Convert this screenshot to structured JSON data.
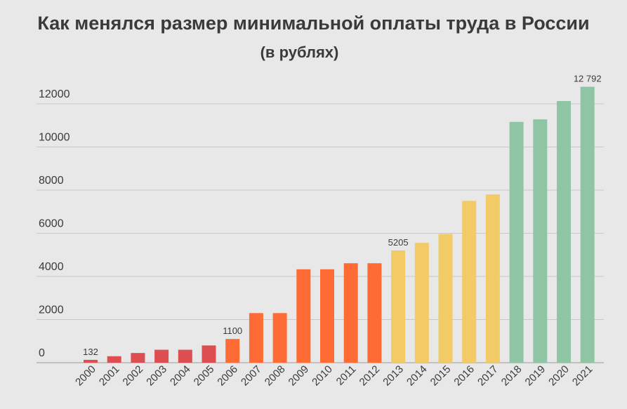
{
  "chart_data": {
    "type": "bar",
    "title": "Как менялся размер минимальной оплаты труда в России",
    "subtitle": "(в рублях)",
    "xlabel": "",
    "ylabel": "",
    "ylim": [
      0,
      13000
    ],
    "yticks": [
      0,
      2000,
      4000,
      6000,
      8000,
      10000,
      12000
    ],
    "grid": true,
    "categories": [
      "2000",
      "2001",
      "2002",
      "2003",
      "2004",
      "2005",
      "2006",
      "2007",
      "2008",
      "2009",
      "2010",
      "2011",
      "2012",
      "2013",
      "2014",
      "2015",
      "2016",
      "2017",
      "2018",
      "2019",
      "2020",
      "2021"
    ],
    "values": [
      132,
      300,
      450,
      600,
      600,
      800,
      1100,
      2300,
      2300,
      4330,
      4330,
      4611,
      4611,
      5205,
      5554,
      5965,
      7500,
      7800,
      11163,
      11280,
      12130,
      12792
    ],
    "colors": [
      "#dc4e52",
      "#dc4e52",
      "#dc4e52",
      "#dc4e52",
      "#dc4e52",
      "#dc4e52",
      "#ff6b35",
      "#ff6b35",
      "#ff6b35",
      "#ff6b35",
      "#ff6b35",
      "#ff6b35",
      "#ff6b35",
      "#f2ca66",
      "#f2ca66",
      "#f2ca66",
      "#f2ca66",
      "#f2ca66",
      "#8fc5a5",
      "#8fc5a5",
      "#8fc5a5",
      "#8fc5a5"
    ],
    "data_labels": [
      {
        "category": "2000",
        "text": "132"
      },
      {
        "category": "2006",
        "text": "1100"
      },
      {
        "category": "2013",
        "text": "5205"
      },
      {
        "category": "2021",
        "text": "12 792"
      }
    ]
  }
}
